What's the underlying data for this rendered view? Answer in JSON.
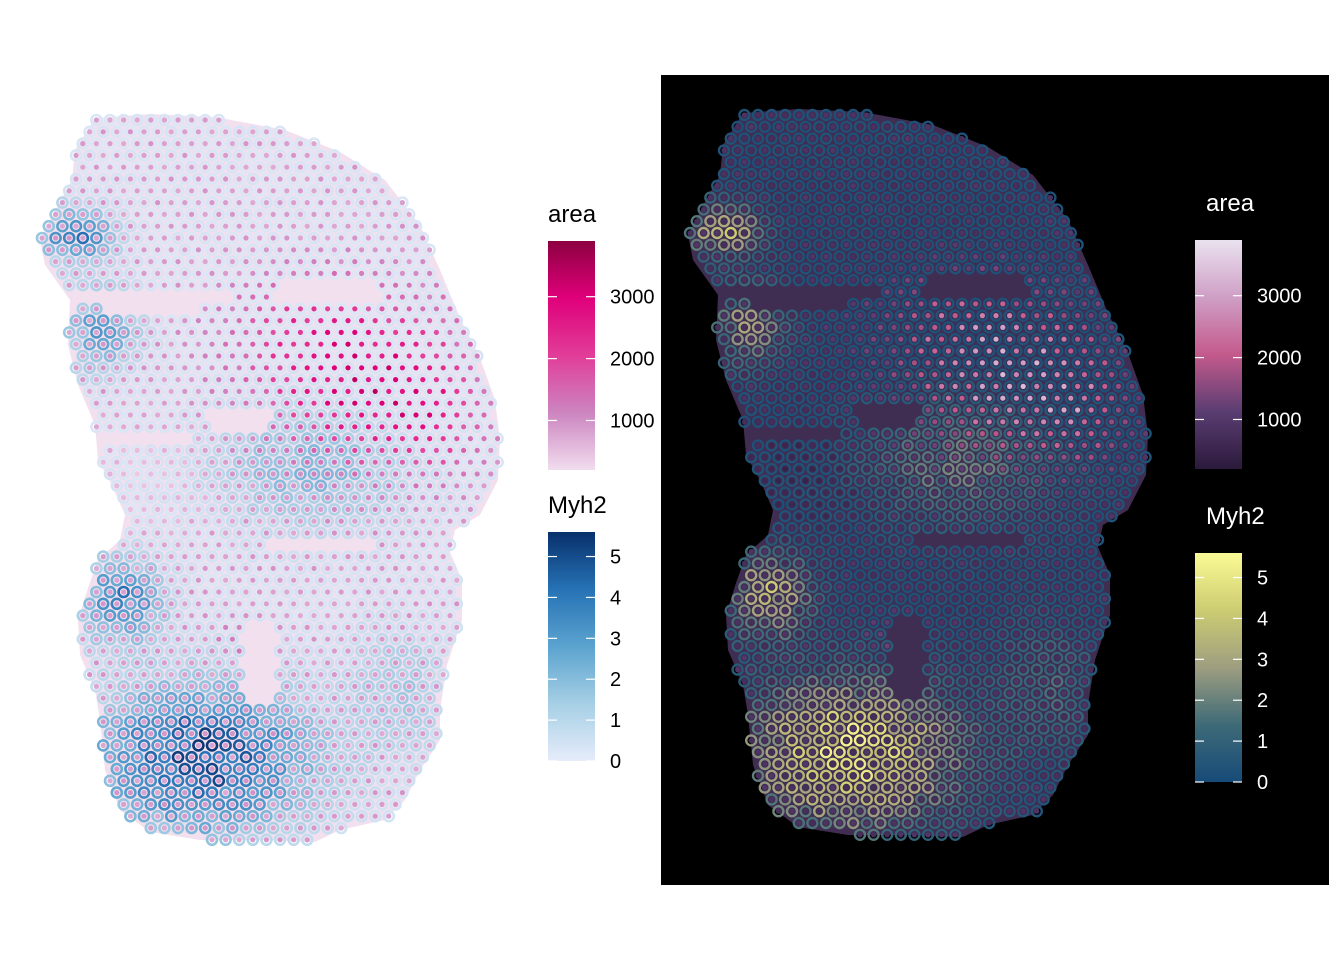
{
  "chart_data": [
    {
      "type": "scatter",
      "panel": "left",
      "background": "#ffffff",
      "layers": [
        {
          "name": "area",
          "role": "spot fill",
          "colors": [
            "#f1ddee",
            "#cc85c0",
            "#e13d98",
            "#e0007a",
            "#8c0040"
          ],
          "range": [
            200,
            3900
          ]
        },
        {
          "name": "Myh2",
          "role": "spot outline",
          "colors": [
            "#e6ecfa",
            "#a6cfe5",
            "#5ba3cf",
            "#2672b5",
            "#08306b"
          ],
          "range": [
            0,
            5.6
          ]
        }
      ],
      "legends": [
        {
          "title": "area",
          "ticks": [
            {
              "value": 1000,
              "label": "1000"
            },
            {
              "value": 2000,
              "label": "2000"
            },
            {
              "value": 3000,
              "label": "3000"
            }
          ],
          "range": [
            200,
            3900
          ]
        },
        {
          "title": "Myh2",
          "ticks": [
            {
              "value": 0,
              "label": "0"
            },
            {
              "value": 1,
              "label": "1"
            },
            {
              "value": 2,
              "label": "2"
            },
            {
              "value": 3,
              "label": "3"
            },
            {
              "value": 4,
              "label": "4"
            },
            {
              "value": 5,
              "label": "5"
            }
          ],
          "range": [
            0,
            5.6
          ]
        }
      ]
    },
    {
      "type": "scatter",
      "panel": "right",
      "background": "#000000",
      "layers": [
        {
          "name": "area",
          "role": "spot fill",
          "colors": [
            "#2b1a3b",
            "#5a3d72",
            "#c45a8c",
            "#cf9fc6",
            "#eae2ef"
          ],
          "range": [
            200,
            3900
          ]
        },
        {
          "name": "Myh2",
          "role": "spot outline",
          "colors": [
            "#174b78",
            "#3e6a77",
            "#9e9e80",
            "#cccc72",
            "#fbfb95"
          ],
          "range": [
            0,
            5.6
          ]
        }
      ],
      "legends": [
        {
          "title": "area",
          "ticks": [
            {
              "value": 1000,
              "label": "1000"
            },
            {
              "value": 2000,
              "label": "2000"
            },
            {
              "value": 3000,
              "label": "3000"
            }
          ],
          "range": [
            200,
            3900
          ]
        },
        {
          "title": "Myh2",
          "ticks": [
            {
              "value": 0,
              "label": "0"
            },
            {
              "value": 1,
              "label": "1"
            },
            {
              "value": 2,
              "label": "2"
            },
            {
              "value": 3,
              "label": "3"
            },
            {
              "value": 4,
              "label": "4"
            },
            {
              "value": 5,
              "label": "5"
            }
          ],
          "range": [
            0,
            5.6
          ]
        }
      ]
    }
  ]
}
